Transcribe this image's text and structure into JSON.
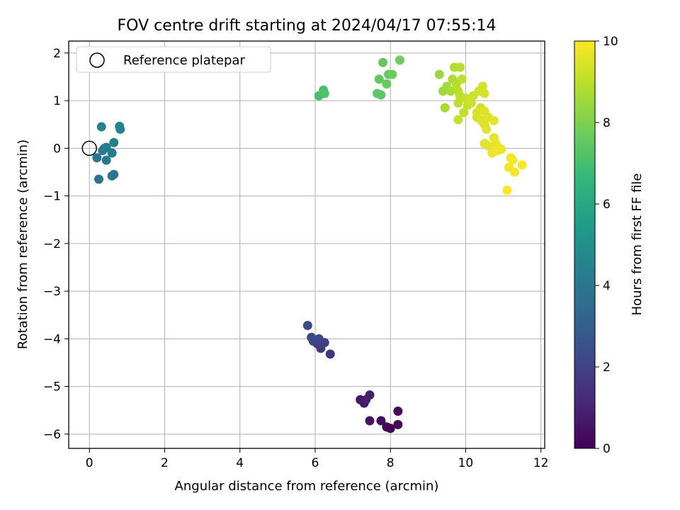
{
  "chart_data": {
    "type": "scatter",
    "title": "FOV centre drift starting at 2024/04/17 07:55:14",
    "xlabel": "Angular distance from reference (arcmin)",
    "ylabel": "Rotation from reference (arcmin)",
    "xlim": [
      -0.55,
      12.1
    ],
    "ylim": [
      -6.3,
      2.25
    ],
    "xticks": [
      0,
      2,
      4,
      6,
      8,
      10,
      12
    ],
    "yticks": [
      -6,
      -5,
      -4,
      -3,
      -2,
      -1,
      0,
      1,
      2
    ],
    "grid": true,
    "legend": {
      "placement": "top-left",
      "entries": [
        "Reference platepar"
      ]
    },
    "reference_point": {
      "x": 0,
      "y": 0
    },
    "colorbar": {
      "label": "Hours from first FF file",
      "range": [
        0,
        10
      ],
      "ticks": [
        0,
        2,
        4,
        6,
        8,
        10
      ],
      "colormap": [
        "#440154",
        "#482878",
        "#3e4989",
        "#31688e",
        "#26828e",
        "#1f9e89",
        "#35b779",
        "#6ece58",
        "#b5de2b",
        "#fde725"
      ]
    },
    "points": [
      [
        7.9,
        -5.85,
        0.05
      ],
      [
        8.0,
        -5.88,
        0.1
      ],
      [
        8.2,
        -5.8,
        0.15
      ],
      [
        8.2,
        -5.52,
        0.2
      ],
      [
        7.75,
        -5.72,
        0.35
      ],
      [
        7.45,
        -5.72,
        0.5
      ],
      [
        7.2,
        -5.28,
        0.6
      ],
      [
        7.3,
        -5.35,
        0.7
      ],
      [
        7.35,
        -5.28,
        0.8
      ],
      [
        7.45,
        -5.18,
        0.9
      ],
      [
        6.4,
        -4.32,
        1.6
      ],
      [
        6.15,
        -4.2,
        1.75
      ],
      [
        6.25,
        -4.08,
        1.85
      ],
      [
        6.05,
        -4.1,
        1.95
      ],
      [
        5.95,
        -4.05,
        2.0
      ],
      [
        6.1,
        -4.0,
        2.1
      ],
      [
        5.9,
        -3.97,
        2.2
      ],
      [
        5.8,
        -3.72,
        2.35
      ],
      [
        0.25,
        -0.65,
        3.75
      ],
      [
        0.65,
        -0.55,
        3.85
      ],
      [
        0.6,
        -0.58,
        3.9
      ],
      [
        0.2,
        -0.2,
        3.95
      ],
      [
        0.45,
        -0.25,
        4.05
      ],
      [
        0.6,
        -0.1,
        4.1
      ],
      [
        0.35,
        -0.05,
        4.15
      ],
      [
        0.4,
        0.0,
        4.2
      ],
      [
        0.45,
        0.02,
        4.25
      ],
      [
        0.65,
        0.12,
        4.3
      ],
      [
        0.32,
        0.45,
        4.4
      ],
      [
        0.82,
        0.4,
        4.45
      ],
      [
        0.8,
        0.46,
        4.5
      ],
      [
        6.1,
        1.1,
        7.0
      ],
      [
        6.22,
        1.22,
        7.1
      ],
      [
        6.25,
        1.15,
        7.15
      ],
      [
        7.65,
        1.15,
        7.4
      ],
      [
        7.75,
        1.12,
        7.45
      ],
      [
        7.7,
        1.45,
        7.5
      ],
      [
        7.8,
        1.8,
        7.55
      ],
      [
        7.9,
        1.35,
        7.6
      ],
      [
        7.95,
        1.55,
        7.65
      ],
      [
        8.05,
        1.55,
        7.7
      ],
      [
        8.25,
        1.85,
        7.75
      ],
      [
        9.3,
        1.55,
        8.5
      ],
      [
        9.4,
        1.2,
        8.55
      ],
      [
        9.5,
        1.3,
        8.6
      ],
      [
        9.45,
        0.85,
        8.65
      ],
      [
        9.6,
        1.2,
        8.7
      ],
      [
        9.65,
        1.45,
        8.75
      ],
      [
        9.7,
        1.7,
        8.8
      ],
      [
        9.75,
        1.35,
        8.85
      ],
      [
        9.8,
        1.2,
        8.9
      ],
      [
        9.85,
        1.7,
        8.95
      ],
      [
        9.9,
        1.45,
        9.0
      ],
      [
        9.8,
        0.95,
        9.02
      ],
      [
        9.85,
        1.1,
        9.05
      ],
      [
        9.95,
        0.75,
        9.08
      ],
      [
        10.0,
        1.05,
        9.1
      ],
      [
        9.8,
        0.6,
        9.12
      ],
      [
        10.05,
        0.9,
        9.15
      ],
      [
        10.1,
        1.0,
        9.2
      ],
      [
        10.15,
        0.95,
        9.22
      ],
      [
        10.2,
        1.1,
        9.25
      ],
      [
        10.3,
        0.65,
        9.28
      ],
      [
        10.35,
        1.2,
        9.3
      ],
      [
        10.4,
        0.85,
        9.32
      ],
      [
        10.45,
        1.3,
        9.35
      ],
      [
        10.3,
        0.75,
        9.38
      ],
      [
        10.5,
        1.15,
        9.4
      ],
      [
        10.4,
        0.6,
        9.42
      ],
      [
        10.45,
        0.55,
        9.45
      ],
      [
        10.5,
        0.78,
        9.48
      ],
      [
        10.5,
        0.5,
        9.5
      ],
      [
        10.6,
        0.65,
        9.52
      ],
      [
        10.55,
        0.4,
        9.55
      ],
      [
        10.75,
        0.58,
        9.58
      ],
      [
        10.5,
        0.1,
        9.6
      ],
      [
        10.6,
        0.05,
        9.62
      ],
      [
        10.75,
        0.22,
        9.65
      ],
      [
        10.8,
        0.1,
        9.68
      ],
      [
        10.7,
        -0.1,
        9.7
      ],
      [
        10.9,
        0.0,
        9.72
      ],
      [
        10.85,
        -0.05,
        9.75
      ],
      [
        10.95,
        -0.02,
        9.78
      ],
      [
        11.2,
        -0.2,
        9.8
      ],
      [
        11.15,
        -0.4,
        9.85
      ],
      [
        11.25,
        -0.25,
        9.88
      ],
      [
        11.3,
        -0.5,
        9.9
      ],
      [
        11.5,
        -0.35,
        9.95
      ],
      [
        11.1,
        -0.88,
        10.0
      ]
    ]
  }
}
